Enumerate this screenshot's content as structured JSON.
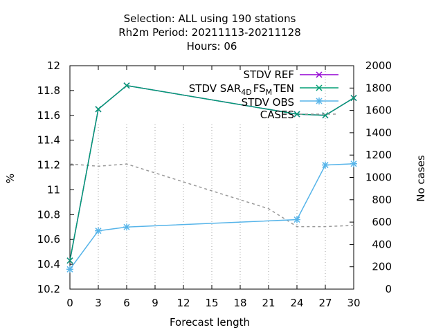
{
  "chart_data": {
    "type": "line",
    "title_lines": [
      "Selection: ALL using   190 stations",
      "Rh2m   Period: 20211113-20211128",
      "Hours:  06"
    ],
    "xlabel": "Forecast length",
    "ylabel": "%",
    "y2label": "No cases",
    "x": [
      0,
      3,
      6,
      24,
      27,
      30
    ],
    "xticks": [
      0,
      3,
      6,
      9,
      12,
      15,
      18,
      21,
      24,
      27,
      30
    ],
    "xlim": [
      0,
      30
    ],
    "ylim": [
      10.2,
      12.0
    ],
    "yticks": [
      "10.2",
      "10.4",
      "10.6",
      "10.8",
      "11",
      "11.2",
      "11.4",
      "11.6",
      "11.8",
      "12"
    ],
    "y2lim": [
      0,
      2000
    ],
    "y2ticks": [
      "0",
      "200",
      "400",
      "600",
      "800",
      "1000",
      "1200",
      "1400",
      "1600",
      "1800",
      "2000"
    ],
    "grid": true,
    "legend_position": "top-right",
    "series": [
      {
        "name": "STDV REF",
        "axis": "y",
        "color": "#9400d3",
        "values": [
          10.43,
          11.65,
          11.84,
          11.61,
          11.6,
          11.74
        ]
      },
      {
        "name": "STDV SAR",
        "name_sub1": "4",
        "name_mid": "D",
        "name_sub2": "FS",
        "name_mid2": "M",
        "name_tail": "TEN",
        "axis": "y",
        "color": "#009e73",
        "values": [
          10.43,
          11.65,
          11.84,
          11.61,
          11.6,
          11.74
        ]
      },
      {
        "name": "STDV OBS",
        "axis": "y",
        "color": "#56b4e9",
        "values": [
          10.36,
          10.67,
          10.7,
          10.76,
          11.2,
          11.21
        ]
      },
      {
        "name": "CASES",
        "axis": "y2",
        "color": "#999999",
        "x": [
          0,
          3,
          6,
          9,
          12,
          15,
          18,
          21,
          24,
          27,
          30
        ],
        "values": [
          1120,
          1100,
          1120,
          1040,
          960,
          880,
          800,
          720,
          560,
          560,
          570
        ]
      }
    ]
  }
}
